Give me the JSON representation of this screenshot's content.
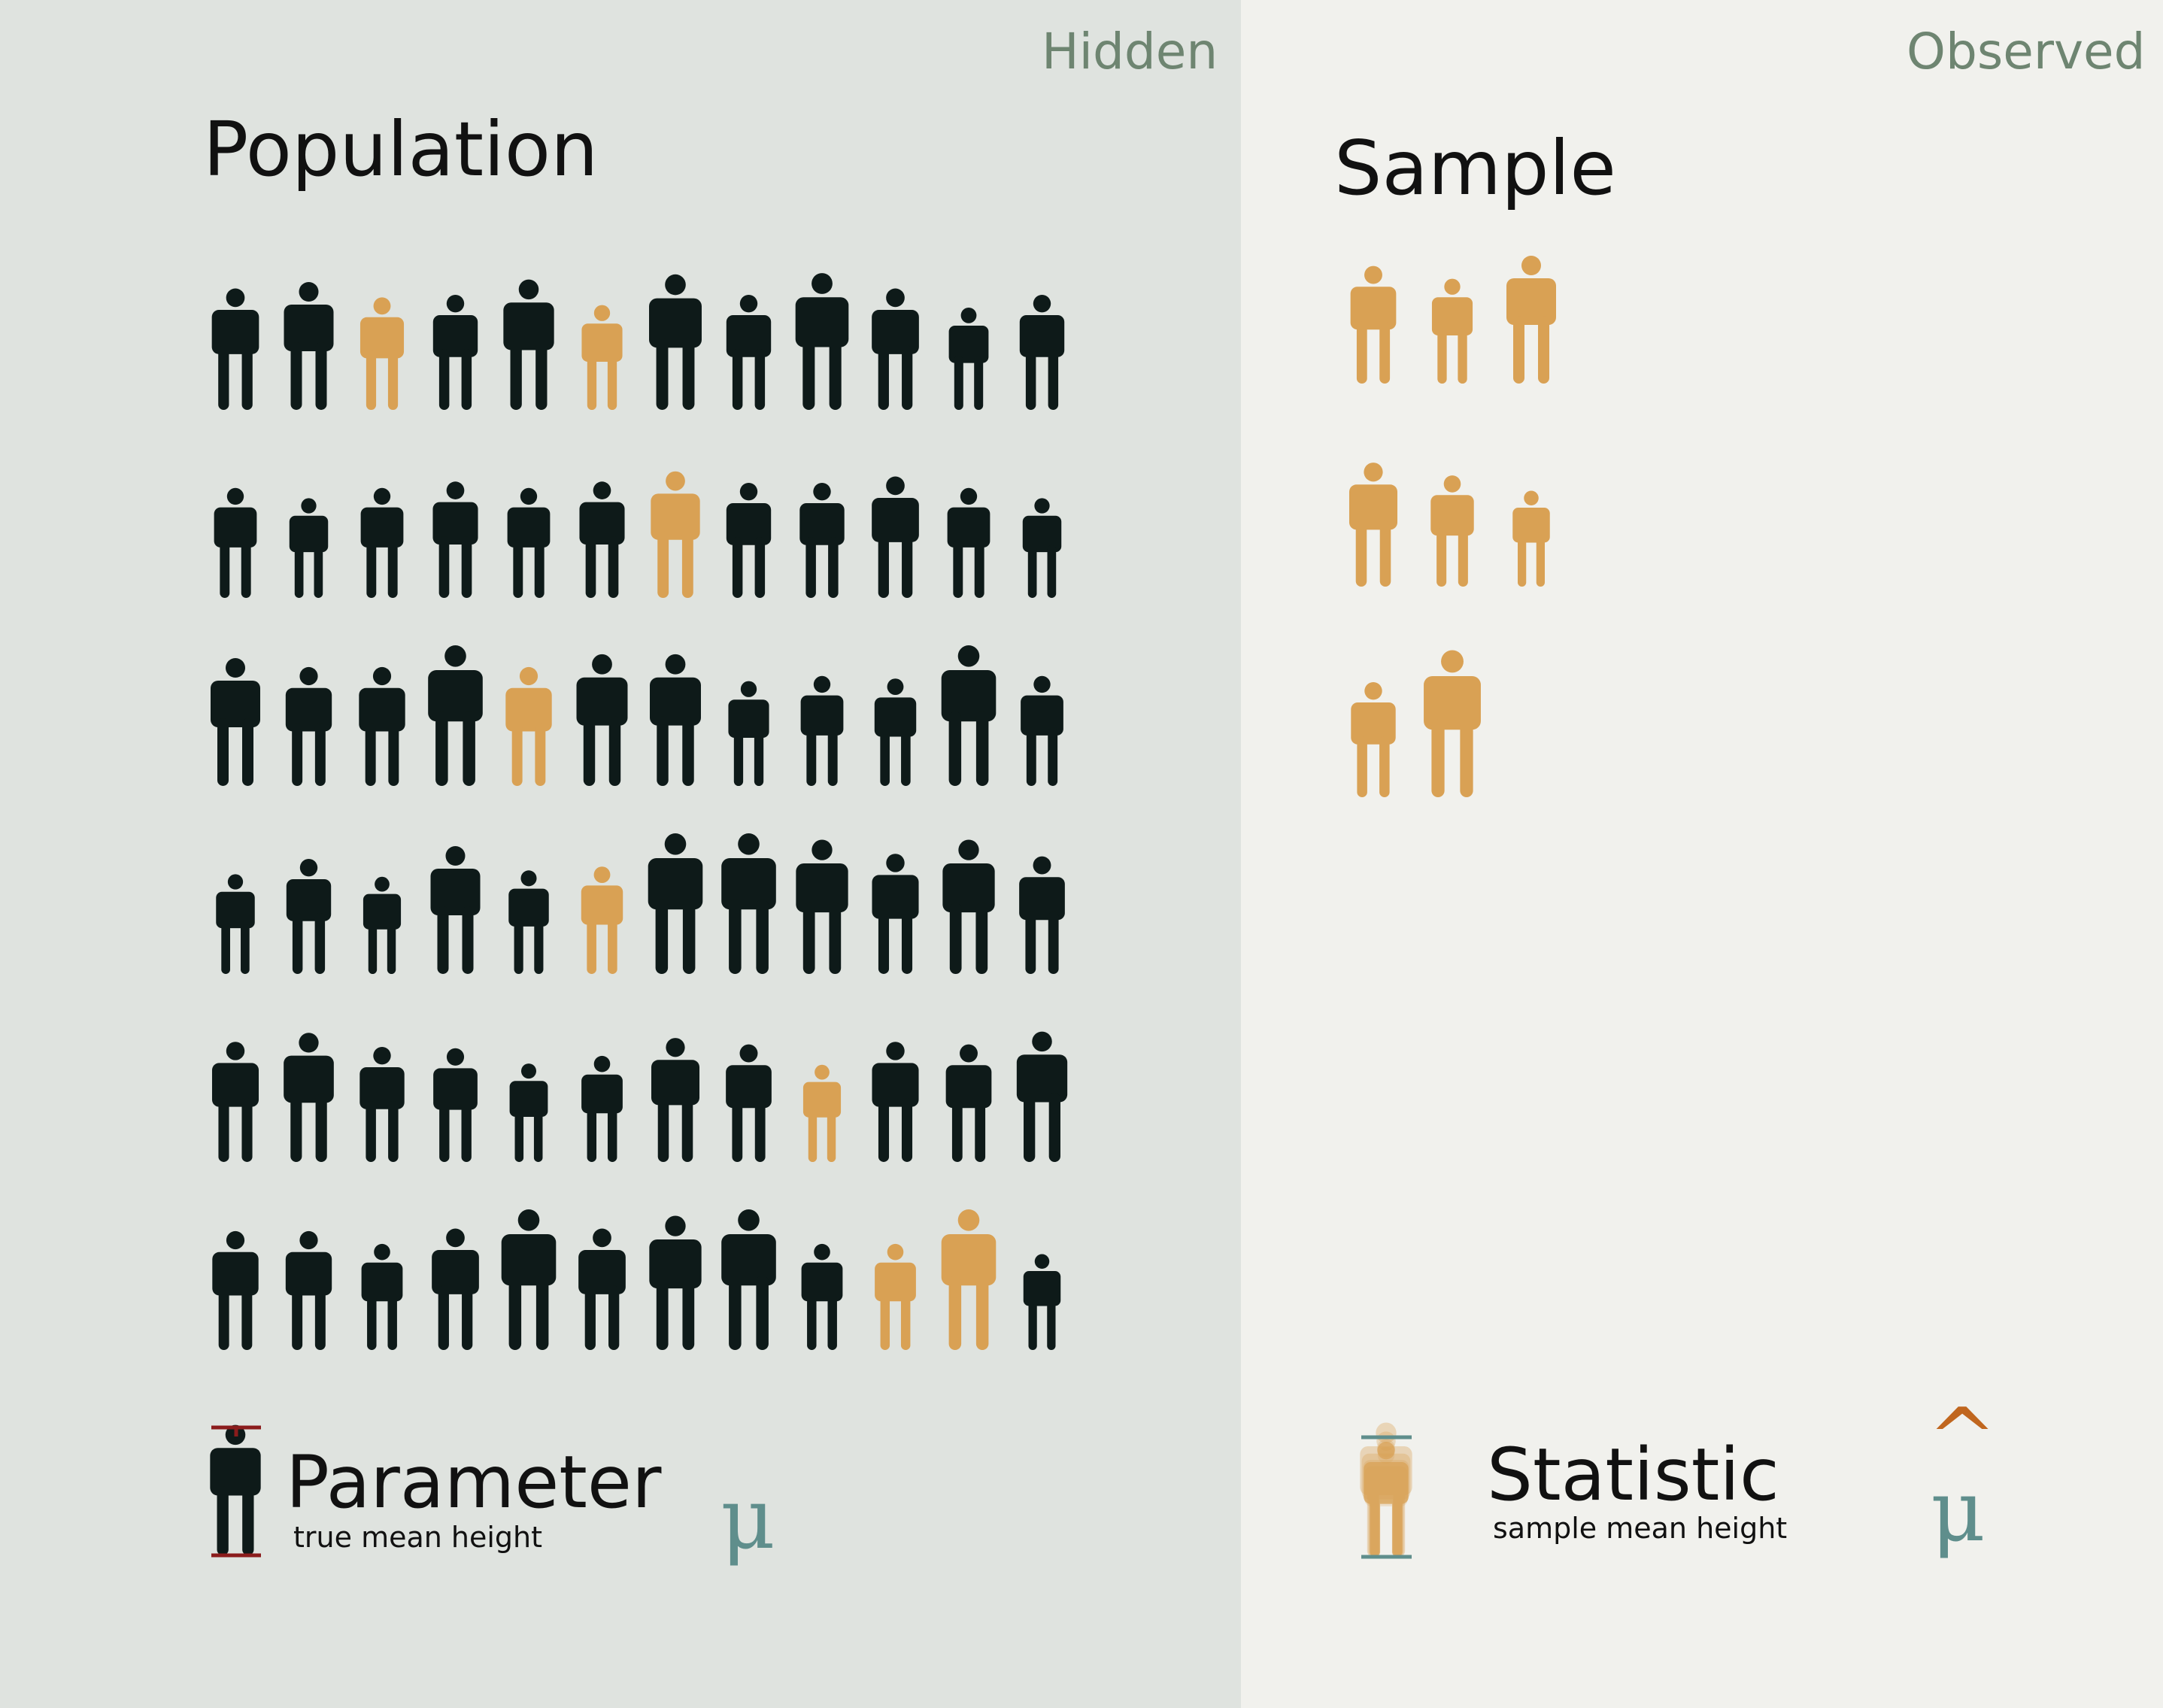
{
  "colors": {
    "hidden_bg": "#dfe3df",
    "observed_bg": "#f1f1ed",
    "person_dark": "#0e1a19",
    "person_sampled": "#d9a154",
    "tag_text": "#6e8571",
    "symbol_teal": "#5f8e8c",
    "parameter_bar": "#8b1c1c",
    "statistic_hat": "#c0661e"
  },
  "population": {
    "tag": "Hidden",
    "title": "Population",
    "people": [
      [
        {
          "h": 0.95,
          "s": false
        },
        {
          "h": 1.0,
          "s": false
        },
        {
          "h": 0.88,
          "s": true
        },
        {
          "h": 0.9,
          "s": false
        },
        {
          "h": 1.02,
          "s": false
        },
        {
          "h": 0.82,
          "s": true
        },
        {
          "h": 1.06,
          "s": false
        },
        {
          "h": 0.9,
          "s": false
        },
        {
          "h": 1.07,
          "s": false
        },
        {
          "h": 0.95,
          "s": false
        },
        {
          "h": 0.8,
          "s": false
        },
        {
          "h": 0.9,
          "s": false
        }
      ],
      [
        {
          "h": 0.86,
          "s": false
        },
        {
          "h": 0.78,
          "s": false
        },
        {
          "h": 0.86,
          "s": false
        },
        {
          "h": 0.91,
          "s": false
        },
        {
          "h": 0.86,
          "s": false
        },
        {
          "h": 0.91,
          "s": false
        },
        {
          "h": 0.99,
          "s": true
        },
        {
          "h": 0.9,
          "s": false
        },
        {
          "h": 0.9,
          "s": false
        },
        {
          "h": 0.95,
          "s": false
        },
        {
          "h": 0.86,
          "s": false
        },
        {
          "h": 0.78,
          "s": false
        }
      ],
      [
        {
          "h": 1.0,
          "s": false
        },
        {
          "h": 0.93,
          "s": false
        },
        {
          "h": 0.93,
          "s": false
        },
        {
          "h": 1.1,
          "s": false
        },
        {
          "h": 0.93,
          "s": true
        },
        {
          "h": 1.03,
          "s": false
        },
        {
          "h": 1.03,
          "s": false
        },
        {
          "h": 0.82,
          "s": false
        },
        {
          "h": 0.86,
          "s": false
        },
        {
          "h": 0.84,
          "s": false
        },
        {
          "h": 1.1,
          "s": false
        },
        {
          "h": 0.86,
          "s": false
        }
      ],
      [
        {
          "h": 0.78,
          "s": false
        },
        {
          "h": 0.9,
          "s": false
        },
        {
          "h": 0.76,
          "s": false
        },
        {
          "h": 1.0,
          "s": false
        },
        {
          "h": 0.81,
          "s": false
        },
        {
          "h": 0.84,
          "s": true
        },
        {
          "h": 1.1,
          "s": false
        },
        {
          "h": 1.1,
          "s": false
        },
        {
          "h": 1.05,
          "s": false
        },
        {
          "h": 0.94,
          "s": false
        },
        {
          "h": 1.05,
          "s": false
        },
        {
          "h": 0.92,
          "s": false
        }
      ],
      [
        {
          "h": 0.94,
          "s": false
        },
        {
          "h": 1.01,
          "s": false
        },
        {
          "h": 0.9,
          "s": false
        },
        {
          "h": 0.89,
          "s": false
        },
        {
          "h": 0.77,
          "s": false
        },
        {
          "h": 0.83,
          "s": false
        },
        {
          "h": 0.97,
          "s": false
        },
        {
          "h": 0.92,
          "s": false
        },
        {
          "h": 0.76,
          "s": true
        },
        {
          "h": 0.94,
          "s": false
        },
        {
          "h": 0.92,
          "s": false
        },
        {
          "h": 1.02,
          "s": false
        }
      ],
      [
        {
          "h": 0.93,
          "s": false
        },
        {
          "h": 0.93,
          "s": false
        },
        {
          "h": 0.83,
          "s": false
        },
        {
          "h": 0.95,
          "s": false
        },
        {
          "h": 1.1,
          "s": false
        },
        {
          "h": 0.95,
          "s": false
        },
        {
          "h": 1.05,
          "s": false
        },
        {
          "h": 1.1,
          "s": false
        },
        {
          "h": 0.83,
          "s": false
        },
        {
          "h": 0.83,
          "s": true
        },
        {
          "h": 1.1,
          "s": true
        },
        {
          "h": 0.75,
          "s": false
        }
      ]
    ],
    "legend": {
      "label": "Parameter",
      "caption": "true mean height",
      "symbol": "μ"
    }
  },
  "sample": {
    "tag": "Observed",
    "title": "Sample",
    "people": [
      [
        {
          "h": 0.92
        },
        {
          "h": 0.82
        },
        {
          "h": 1.0
        }
      ],
      [
        {
          "h": 0.97
        },
        {
          "h": 0.87
        },
        {
          "h": 0.75
        }
      ],
      [
        {
          "h": 0.9
        },
        {
          "h": 1.15
        }
      ]
    ],
    "legend": {
      "label": "Statistic",
      "caption": "sample mean height",
      "symbol": "μ",
      "hat": "^"
    }
  }
}
